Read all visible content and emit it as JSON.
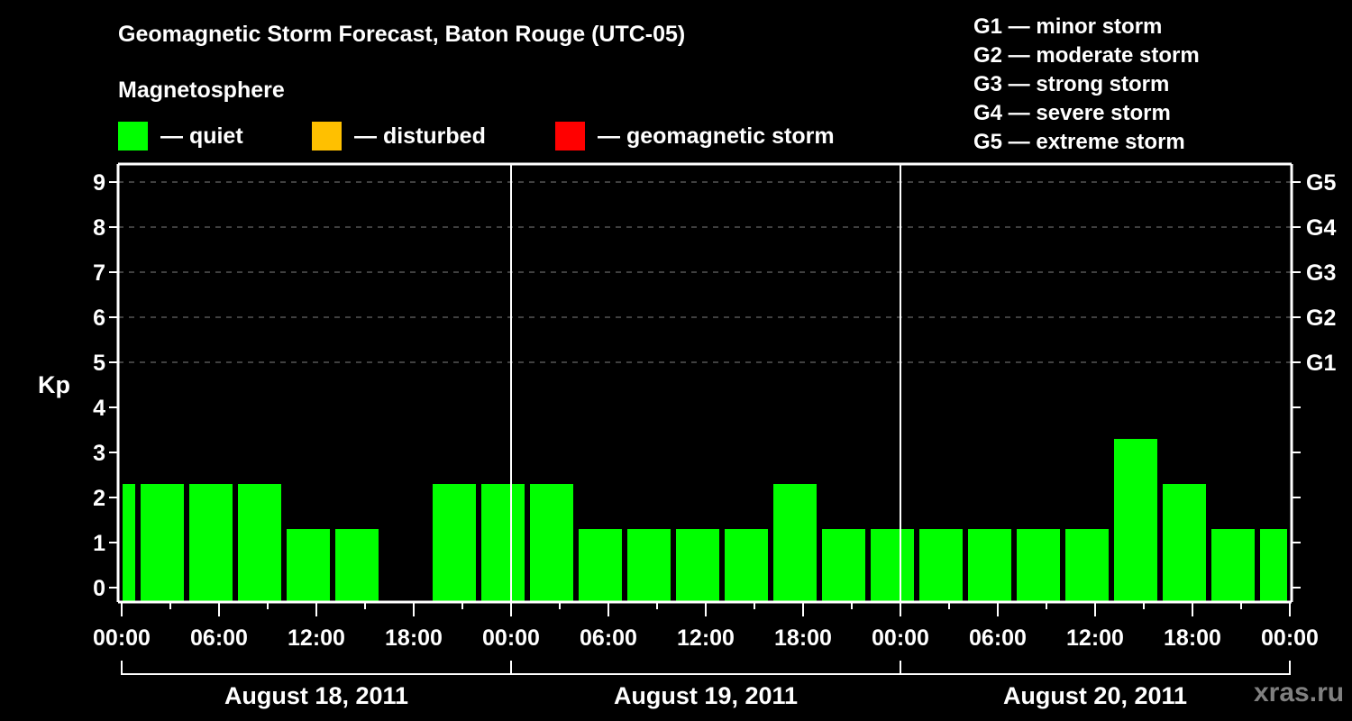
{
  "header": {
    "title": "Geomagnetic Storm Forecast, Baton Rouge (UTC-05)",
    "subtitle": "Magnetosphere"
  },
  "legend": {
    "items": [
      {
        "label": "— quiet",
        "color": "#00ff00"
      },
      {
        "label": "— disturbed",
        "color": "#ffc000"
      },
      {
        "label": "— geomagnetic storm",
        "color": "#ff0000"
      }
    ]
  },
  "storm_scale": [
    "G1 — minor storm",
    "G2 — moderate storm",
    "G3 — strong storm",
    "G4 — severe storm",
    "G5 — extreme storm"
  ],
  "axes": {
    "ylabel": "Kp",
    "y_ticks": [
      "0",
      "1",
      "2",
      "3",
      "4",
      "5",
      "6",
      "7",
      "8",
      "9"
    ],
    "right_ticks": [
      {
        "kp": 5,
        "label": "G1"
      },
      {
        "kp": 6,
        "label": "G2"
      },
      {
        "kp": 7,
        "label": "G3"
      },
      {
        "kp": 8,
        "label": "G4"
      },
      {
        "kp": 9,
        "label": "G5"
      }
    ],
    "x_ticks": [
      "00:00",
      "06:00",
      "12:00",
      "18:00",
      "00:00",
      "06:00",
      "12:00",
      "18:00",
      "00:00",
      "06:00",
      "12:00",
      "18:00",
      "00:00"
    ],
    "days": [
      "August 18, 2011",
      "August 19, 2011",
      "August 20, 2011"
    ]
  },
  "watermark": "xras.ru",
  "colors": {
    "background": "#000000",
    "quiet": "#00ff00",
    "disturbed": "#ffc000",
    "storm": "#ff0000",
    "axis": "#ffffff",
    "grid": "#808080"
  },
  "chart_data": {
    "type": "bar",
    "title": "Geomagnetic Storm Forecast, Baton Rouge (UTC-05)",
    "xlabel": "",
    "ylabel": "Kp",
    "ylim": [
      0,
      9
    ],
    "grid": "dashed horizontal lines at Kp 5–9 (G1–G5)",
    "interval_hours": 3,
    "timezone": "UTC-05",
    "categories": [
      "Aug 18 00:00",
      "Aug 18 01:00",
      "Aug 18 04:00",
      "Aug 18 07:00",
      "Aug 18 10:00",
      "Aug 18 13:00",
      "Aug 18 16:00",
      "Aug 18 19:00",
      "Aug 18 22:00",
      "Aug 19 01:00",
      "Aug 19 04:00",
      "Aug 19 07:00",
      "Aug 19 10:00",
      "Aug 19 13:00",
      "Aug 19 16:00",
      "Aug 19 19:00",
      "Aug 19 22:00",
      "Aug 20 01:00",
      "Aug 20 04:00",
      "Aug 20 07:00",
      "Aug 20 10:00",
      "Aug 20 13:00",
      "Aug 20 16:00",
      "Aug 20 19:00",
      "Aug 20 22:00"
    ],
    "values": [
      2,
      2,
      2,
      2,
      1,
      1,
      0,
      2,
      2,
      2,
      1,
      1,
      1,
      1,
      2,
      1,
      1,
      1,
      1,
      1,
      1,
      3,
      2,
      1,
      1
    ],
    "status": [
      "quiet",
      "quiet",
      "quiet",
      "quiet",
      "quiet",
      "quiet",
      "quiet",
      "quiet",
      "quiet",
      "quiet",
      "quiet",
      "quiet",
      "quiet",
      "quiet",
      "quiet",
      "quiet",
      "quiet",
      "quiet",
      "quiet",
      "quiet",
      "quiet",
      "quiet",
      "quiet",
      "quiet",
      "quiet"
    ],
    "legend": [
      "quiet",
      "disturbed",
      "geomagnetic storm"
    ],
    "right_axis": [
      "G1",
      "G2",
      "G3",
      "G4",
      "G5"
    ]
  }
}
